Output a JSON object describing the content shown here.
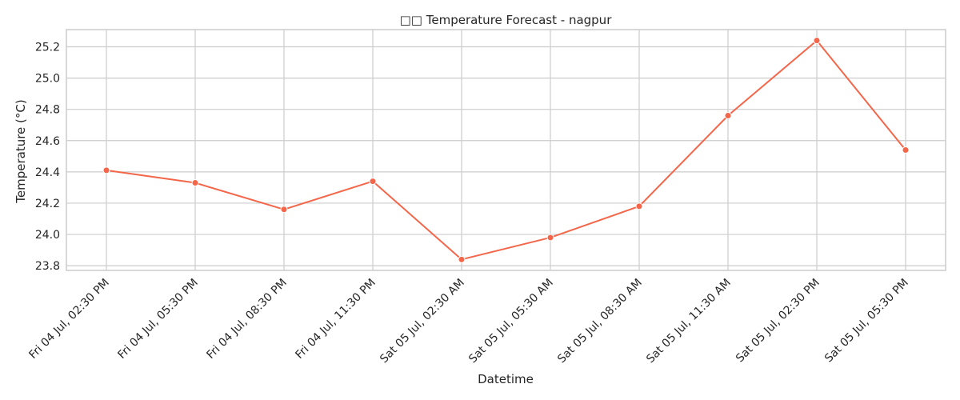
{
  "chart_data": {
    "type": "line",
    "title": "□□ Temperature Forecast - nagpur",
    "xlabel": "Datetime",
    "ylabel": "Temperature (°C)",
    "categories": [
      "Fri 04 Jul, 02:30 PM",
      "Fri 04 Jul, 05:30 PM",
      "Fri 04 Jul, 08:30 PM",
      "Fri 04 Jul, 11:30 PM",
      "Sat 05 Jul, 02:30 AM",
      "Sat 05 Jul, 05:30 AM",
      "Sat 05 Jul, 08:30 AM",
      "Sat 05 Jul, 11:30 AM",
      "Sat 05 Jul, 02:30 PM",
      "Sat 05 Jul, 05:30 PM"
    ],
    "series": [
      {
        "values": [
          24.41,
          24.33,
          24.16,
          24.34,
          23.84,
          23.98,
          24.18,
          24.76,
          25.24,
          24.54
        ]
      }
    ],
    "ylim": [
      23.77,
      25.31
    ],
    "yticks": [
      "23.8",
      "24.0",
      "24.2",
      "24.4",
      "24.6",
      "24.8",
      "25.0",
      "25.2"
    ],
    "grid": true,
    "line_color": "#f4664a"
  }
}
